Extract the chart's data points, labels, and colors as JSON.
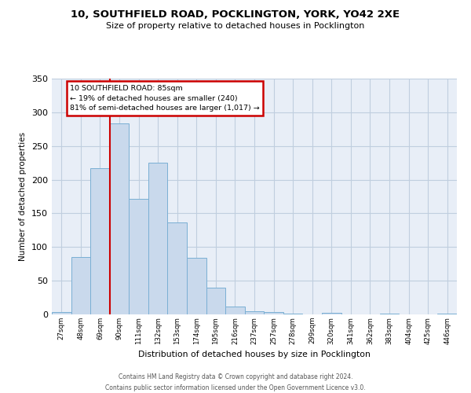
{
  "title": "10, SOUTHFIELD ROAD, POCKLINGTON, YORK, YO42 2XE",
  "subtitle": "Size of property relative to detached houses in Pocklington",
  "xlabel": "Distribution of detached houses by size in Pocklington",
  "ylabel": "Number of detached properties",
  "bar_values": [
    3,
    85,
    217,
    283,
    171,
    225,
    136,
    84,
    40,
    12,
    5,
    4,
    1,
    0,
    2,
    0,
    0,
    1,
    0,
    0,
    1
  ],
  "categories": [
    "27sqm",
    "48sqm",
    "69sqm",
    "90sqm",
    "111sqm",
    "132sqm",
    "153sqm",
    "174sqm",
    "195sqm",
    "216sqm",
    "237sqm",
    "257sqm",
    "278sqm",
    "299sqm",
    "320sqm",
    "341sqm",
    "362sqm",
    "383sqm",
    "404sqm",
    "425sqm",
    "446sqm"
  ],
  "bar_color": "#c9d9ec",
  "bar_edge_color": "#7aafd4",
  "red_line_x": 3,
  "annotation_line1": "10 SOUTHFIELD ROAD: 85sqm",
  "annotation_line2": "← 19% of detached houses are smaller (240)",
  "annotation_line3": "81% of semi-detached houses are larger (1,017) →",
  "annotation_box_color": "#ffffff",
  "annotation_box_edge": "#cc0000",
  "red_line_color": "#cc0000",
  "ylim": [
    0,
    350
  ],
  "yticks": [
    0,
    50,
    100,
    150,
    200,
    250,
    300,
    350
  ],
  "grid_color": "#c0cedf",
  "background_color": "#e8eef7",
  "footer_line1": "Contains HM Land Registry data © Crown copyright and database right 2024.",
  "footer_line2": "Contains public sector information licensed under the Open Government Licence v3.0."
}
